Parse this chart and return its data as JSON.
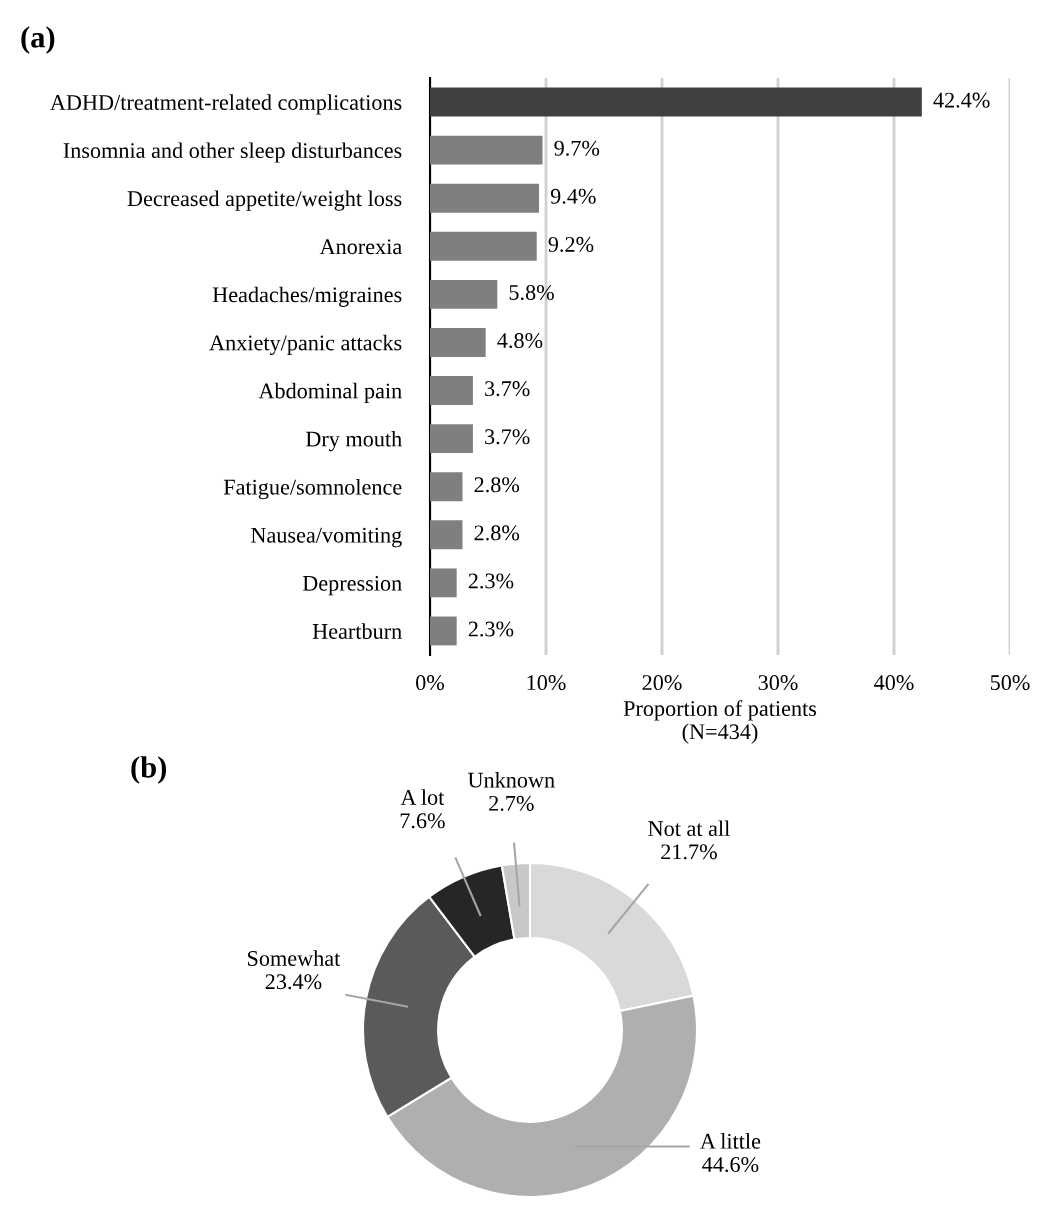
{
  "chart_data": [
    {
      "type": "bar",
      "title": "(a)",
      "orientation": "horizontal",
      "categories": [
        "ADHD/treatment-related complications",
        "Insomnia and other sleep disturbances",
        "Decreased appetite/weight loss",
        "Anorexia",
        "Headaches/migraines",
        "Anxiety/panic attacks",
        "Abdominal pain",
        "Dry mouth",
        "Fatigue/somnolence",
        "Nausea/vomiting",
        "Depression",
        "Heartburn"
      ],
      "values": [
        42.4,
        9.7,
        9.4,
        9.2,
        5.8,
        4.8,
        3.7,
        3.7,
        2.8,
        2.8,
        2.3,
        2.3
      ],
      "value_labels": [
        "42.4%",
        "9.7%",
        "9.4%",
        "9.2%",
        "5.8%",
        "4.8%",
        "3.7%",
        "3.7%",
        "2.8%",
        "2.8%",
        "2.3%",
        "2.3%"
      ],
      "colors": [
        "#404040",
        "#7f7f7f",
        "#7f7f7f",
        "#7f7f7f",
        "#7f7f7f",
        "#7f7f7f",
        "#7f7f7f",
        "#7f7f7f",
        "#7f7f7f",
        "#7f7f7f",
        "#7f7f7f",
        "#7f7f7f"
      ],
      "xlabel": "Proportion of patients\n(N=434)",
      "xlim": [
        0,
        50
      ],
      "xticks": [
        {
          "value": 0,
          "label": "0%"
        },
        {
          "value": 10,
          "label": "10%"
        },
        {
          "value": 20,
          "label": "20%"
        },
        {
          "value": 30,
          "label": "30%"
        },
        {
          "value": 40,
          "label": "40%"
        },
        {
          "value": 50,
          "label": "50%"
        }
      ],
      "grid": "x",
      "legend": false
    },
    {
      "type": "donut",
      "title": "(b)",
      "categories": [
        "Not at all",
        "A little",
        "Somewhat",
        "A lot",
        "Unknown"
      ],
      "values": [
        21.7,
        44.6,
        23.4,
        7.6,
        2.7
      ],
      "value_labels": [
        "21.7%",
        "44.6%",
        "23.4%",
        "7.6%",
        "2.7%"
      ],
      "colors": [
        "#d9d9d9",
        "#afafaf",
        "#5a5a5a",
        "#262626",
        "#c8c8c8"
      ],
      "legend": false
    }
  ]
}
